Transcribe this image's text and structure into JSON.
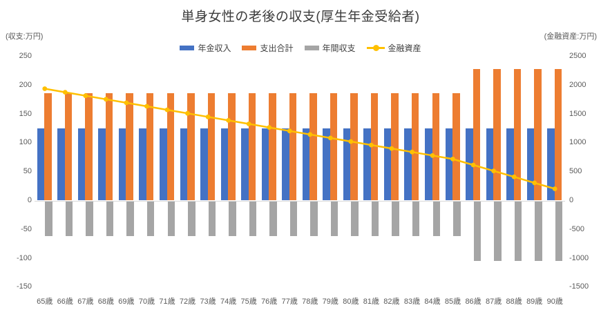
{
  "title": "単身女性の老後の収支(厚生年金受給者)",
  "axes": {
    "left_header": "(収支:万円)",
    "right_header": "(金融資産:万円)",
    "left_ticks": [
      250,
      200,
      150,
      100,
      50,
      0,
      -50,
      -100,
      -150
    ],
    "right_ticks": [
      2500,
      2000,
      1500,
      1000,
      500,
      0,
      -500,
      -1000,
      -1500
    ]
  },
  "legend": {
    "items": [
      {
        "label": "年金収入",
        "color": "#4472C4",
        "type": "bar"
      },
      {
        "label": "支出合計",
        "color": "#ED7D31",
        "type": "bar"
      },
      {
        "label": "年間収支",
        "color": "#A5A5A5",
        "type": "bar"
      },
      {
        "label": "金融資産",
        "color": "#FFC000",
        "type": "line"
      }
    ]
  },
  "chart_data": {
    "type": "bar",
    "subtype": "clustered bars with overlaid line (combo chart, dual axis)",
    "title": "単身女性の老後の収支(厚生年金受給者)",
    "categories": [
      "65歳",
      "66歳",
      "67歳",
      "68歳",
      "69歳",
      "70歳",
      "71歳",
      "72歳",
      "73歳",
      "74歳",
      "75歳",
      "76歳",
      "77歳",
      "78歳",
      "79歳",
      "80歳",
      "81歳",
      "82歳",
      "83歳",
      "84歳",
      "85歳",
      "86歳",
      "87歳",
      "88歳",
      "89歳",
      "90歳"
    ],
    "series": [
      {
        "name": "年金収入",
        "type": "bar",
        "axis": "left",
        "color": "#4472C4",
        "values": [
          125,
          125,
          125,
          125,
          125,
          125,
          125,
          125,
          125,
          125,
          125,
          125,
          125,
          125,
          125,
          125,
          125,
          125,
          125,
          125,
          125,
          125,
          125,
          125,
          125,
          125
        ]
      },
      {
        "name": "支出合計",
        "type": "bar",
        "axis": "left",
        "color": "#ED7D31",
        "values": [
          186,
          186,
          186,
          186,
          186,
          186,
          186,
          186,
          186,
          186,
          186,
          186,
          186,
          186,
          186,
          186,
          186,
          186,
          186,
          186,
          186,
          228,
          228,
          228,
          228,
          228
        ]
      },
      {
        "name": "年間収支",
        "type": "bar",
        "axis": "left",
        "color": "#A5A5A5",
        "values": [
          -61,
          -61,
          -61,
          -61,
          -61,
          -61,
          -61,
          -61,
          -61,
          -61,
          -61,
          -61,
          -61,
          -61,
          -61,
          -61,
          -61,
          -61,
          -61,
          -61,
          -61,
          -103,
          -103,
          -103,
          -103,
          -103
        ]
      },
      {
        "name": "金融資産",
        "type": "line",
        "axis": "right",
        "color": "#FFC000",
        "values": [
          1939,
          1878,
          1817,
          1756,
          1695,
          1634,
          1573,
          1512,
          1451,
          1390,
          1329,
          1268,
          1207,
          1146,
          1085,
          1024,
          963,
          902,
          841,
          780,
          719,
          616,
          513,
          410,
          307,
          204
        ]
      }
    ],
    "left_axis": {
      "label": "(収支:万円)",
      "min": -150,
      "max": 250,
      "tick_step": 50
    },
    "right_axis": {
      "label": "(金融資産:万円)",
      "min": -1500,
      "max": 2500,
      "tick_step": 500
    },
    "grid": false,
    "legend_position": "top"
  }
}
